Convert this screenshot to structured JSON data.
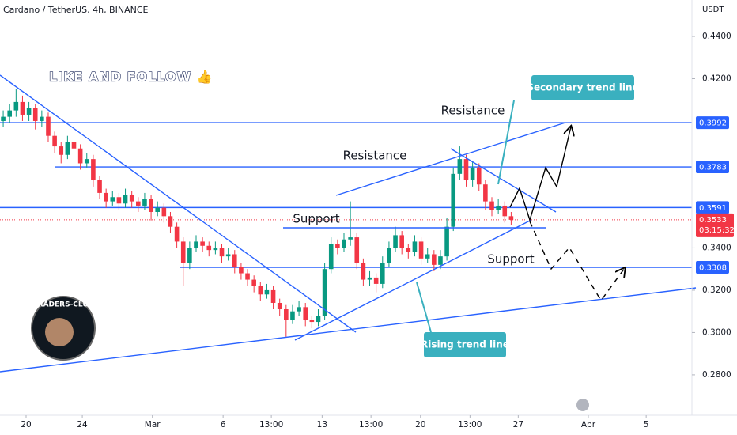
{
  "chart_data": {
    "type": "candlestick",
    "title": "Cardano / TetherUS, 4h, BINANCE",
    "currency": "USDT",
    "banner": "LIKE AND FOLLOW 👍",
    "logo_text": "TRADERS-CLUB",
    "annotations": {
      "resistance_upper": "Resistance",
      "resistance_lower": "Resistance",
      "support_left": "Support",
      "support_right": "Support",
      "secondary": "Secondary trend line",
      "rising": "Rising trend line"
    },
    "up_color": "#089981",
    "down_color": "#f23645",
    "level_color": "#2962ff",
    "levels": [
      0.3992,
      0.3783,
      0.3591,
      0.3308
    ],
    "last_price": 0.3533,
    "countdown": "03:15:32",
    "ylim": [
      0.2609,
      0.4572
    ],
    "yticks": [
      {
        "value": 0.44,
        "label": "0.4400"
      },
      {
        "value": 0.42,
        "label": "0.4200"
      },
      {
        "value": 0.34,
        "label": "0.3400"
      },
      {
        "value": 0.32,
        "label": "0.3200"
      },
      {
        "value": 0.3,
        "label": "0.3000"
      },
      {
        "value": 0.28,
        "label": "0.2800"
      }
    ],
    "xlim": [
      -0.5,
      106.5
    ],
    "xticks": [
      {
        "value": 3.56,
        "label": "20"
      },
      {
        "value": 12.3,
        "label": "24"
      },
      {
        "value": 23.2,
        "label": "Mar"
      },
      {
        "value": 34.2,
        "label": "6"
      },
      {
        "value": 41.7,
        "label": "13:00"
      },
      {
        "value": 49.6,
        "label": "13"
      },
      {
        "value": 57.2,
        "label": "13:00"
      },
      {
        "value": 64.9,
        "label": "20"
      },
      {
        "value": 72.6,
        "label": "13:00"
      },
      {
        "value": 80.1,
        "label": "27"
      },
      {
        "value": 91.0,
        "label": "Apr"
      },
      {
        "value": 100,
        "label": "5"
      }
    ],
    "open": [
      0.4,
      0.402,
      0.405,
      0.409,
      0.403,
      0.406,
      0.4,
      0.402,
      0.393,
      0.388,
      0.384,
      0.39,
      0.387,
      0.38,
      0.382,
      0.372,
      0.366,
      0.362,
      0.364,
      0.361,
      0.365,
      0.362,
      0.36,
      0.363,
      0.357,
      0.359,
      0.355,
      0.35,
      0.343,
      0.333,
      0.34,
      0.343,
      0.341,
      0.339,
      0.34,
      0.336,
      0.337,
      0.331,
      0.328,
      0.325,
      0.322,
      0.318,
      0.32,
      0.314,
      0.311,
      0.306,
      0.31,
      0.312,
      0.306,
      0.305,
      0.308,
      0.33,
      0.342,
      0.34,
      0.344,
      0.345,
      0.333,
      0.325,
      0.326,
      0.323,
      0.333,
      0.34,
      0.346,
      0.34,
      0.338,
      0.343,
      0.335,
      0.337,
      0.332,
      0.336,
      0.35,
      0.375,
      0.382,
      0.372,
      0.378,
      0.37,
      0.362,
      0.358,
      0.36,
      0.355
    ],
    "high": [
      0.405,
      0.408,
      0.415,
      0.412,
      0.409,
      0.408,
      0.405,
      0.404,
      0.395,
      0.39,
      0.393,
      0.392,
      0.389,
      0.385,
      0.384,
      0.374,
      0.368,
      0.367,
      0.366,
      0.368,
      0.367,
      0.364,
      0.366,
      0.365,
      0.362,
      0.361,
      0.357,
      0.352,
      0.345,
      0.343,
      0.346,
      0.345,
      0.343,
      0.343,
      0.342,
      0.34,
      0.339,
      0.333,
      0.33,
      0.327,
      0.324,
      0.323,
      0.322,
      0.316,
      0.313,
      0.313,
      0.315,
      0.314,
      0.308,
      0.311,
      0.333,
      0.345,
      0.344,
      0.347,
      0.362,
      0.347,
      0.335,
      0.329,
      0.328,
      0.336,
      0.343,
      0.35,
      0.348,
      0.342,
      0.346,
      0.345,
      0.34,
      0.339,
      0.339,
      0.354,
      0.378,
      0.388,
      0.384,
      0.381,
      0.38,
      0.372,
      0.364,
      0.363,
      0.362,
      0.357
    ],
    "low": [
      0.397,
      0.399,
      0.402,
      0.4,
      0.4,
      0.396,
      0.397,
      0.39,
      0.385,
      0.38,
      0.382,
      0.384,
      0.377,
      0.378,
      0.369,
      0.363,
      0.359,
      0.36,
      0.358,
      0.359,
      0.359,
      0.357,
      0.358,
      0.353,
      0.355,
      0.352,
      0.347,
      0.34,
      0.322,
      0.33,
      0.338,
      0.338,
      0.336,
      0.337,
      0.333,
      0.334,
      0.328,
      0.325,
      0.322,
      0.319,
      0.315,
      0.316,
      0.311,
      0.308,
      0.298,
      0.304,
      0.308,
      0.303,
      0.302,
      0.303,
      0.306,
      0.328,
      0.337,
      0.338,
      0.341,
      0.33,
      0.322,
      0.322,
      0.319,
      0.321,
      0.331,
      0.338,
      0.337,
      0.335,
      0.336,
      0.332,
      0.333,
      0.329,
      0.33,
      0.334,
      0.348,
      0.372,
      0.369,
      0.369,
      0.367,
      0.358,
      0.355,
      0.356,
      0.352,
      0.351
    ],
    "close": [
      0.402,
      0.405,
      0.409,
      0.403,
      0.406,
      0.4,
      0.402,
      0.393,
      0.388,
      0.384,
      0.39,
      0.387,
      0.38,
      0.382,
      0.372,
      0.366,
      0.362,
      0.364,
      0.361,
      0.365,
      0.362,
      0.36,
      0.363,
      0.357,
      0.359,
      0.355,
      0.35,
      0.343,
      0.333,
      0.34,
      0.343,
      0.341,
      0.339,
      0.34,
      0.336,
      0.337,
      0.331,
      0.328,
      0.325,
      0.322,
      0.318,
      0.32,
      0.314,
      0.311,
      0.306,
      0.31,
      0.312,
      0.306,
      0.305,
      0.308,
      0.33,
      0.342,
      0.34,
      0.344,
      0.345,
      0.333,
      0.325,
      0.326,
      0.323,
      0.333,
      0.34,
      0.346,
      0.34,
      0.338,
      0.343,
      0.335,
      0.337,
      0.332,
      0.336,
      0.35,
      0.375,
      0.382,
      0.372,
      0.378,
      0.37,
      0.362,
      0.358,
      0.36,
      0.355,
      0.3533
    ]
  }
}
